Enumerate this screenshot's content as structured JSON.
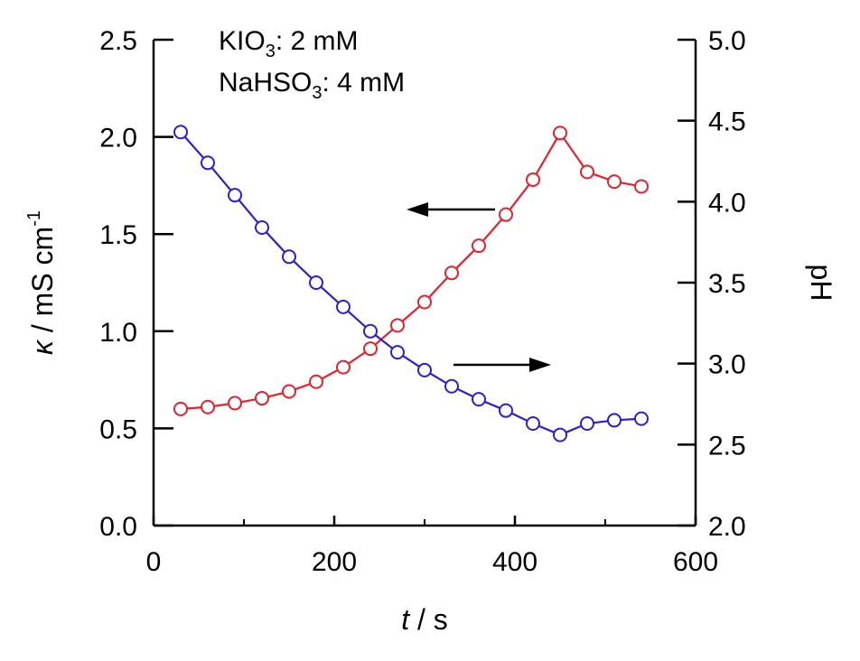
{
  "chart_data": {
    "type": "line",
    "title": "",
    "xlabel": {
      "var": "t",
      "unit": " / s"
    },
    "ylabel_left": {
      "var": "κ",
      "unit": " / mS cm",
      "sup": "-1"
    },
    "ylabel_right": "pH",
    "xlim": [
      0,
      600
    ],
    "ylim_left": [
      0,
      2.5
    ],
    "ylim_right": [
      2.0,
      5.0
    ],
    "x_ticks": [
      "0",
      "200",
      "400",
      "600"
    ],
    "y_left_ticks": [
      "0.0",
      "0.5",
      "1.0",
      "1.5",
      "2.0",
      "2.5"
    ],
    "y_right_ticks": [
      "2.0",
      "2.5",
      "3.0",
      "3.5",
      "4.0",
      "4.5",
      "5.0"
    ],
    "grid": false,
    "annotations": [
      {
        "main": "KIO",
        "sub": "3",
        "rest": ": 2 mM"
      },
      {
        "main": "NaHSO",
        "sub": "3",
        "rest": ": 4 mM"
      }
    ],
    "arrows": [
      {
        "points_to": "left",
        "refers_to": "conductivity"
      },
      {
        "points_to": "right",
        "refers_to": "pH"
      }
    ],
    "series": [
      {
        "axis": "left",
        "color": "#e8202a",
        "x": [
          30,
          60,
          90,
          120,
          150,
          180,
          210,
          240,
          270,
          300,
          330,
          360,
          390,
          420,
          450,
          480,
          510,
          540
        ],
        "values": [
          0.6,
          0.61,
          0.63,
          0.655,
          0.69,
          0.74,
          0.815,
          0.91,
          1.03,
          1.15,
          1.3,
          1.44,
          1.6,
          1.78,
          2.02,
          1.82,
          1.77,
          1.745
        ]
      },
      {
        "axis": "right",
        "color": "#2a1ed8",
        "x": [
          30,
          60,
          90,
          120,
          150,
          180,
          210,
          240,
          270,
          300,
          330,
          360,
          390,
          420,
          450,
          480,
          510,
          540
        ],
        "values": [
          4.43,
          4.24,
          4.04,
          3.84,
          3.66,
          3.5,
          3.35,
          3.2,
          3.07,
          2.96,
          2.86,
          2.78,
          2.71,
          2.63,
          2.56,
          2.63,
          2.65,
          2.66
        ]
      }
    ]
  }
}
